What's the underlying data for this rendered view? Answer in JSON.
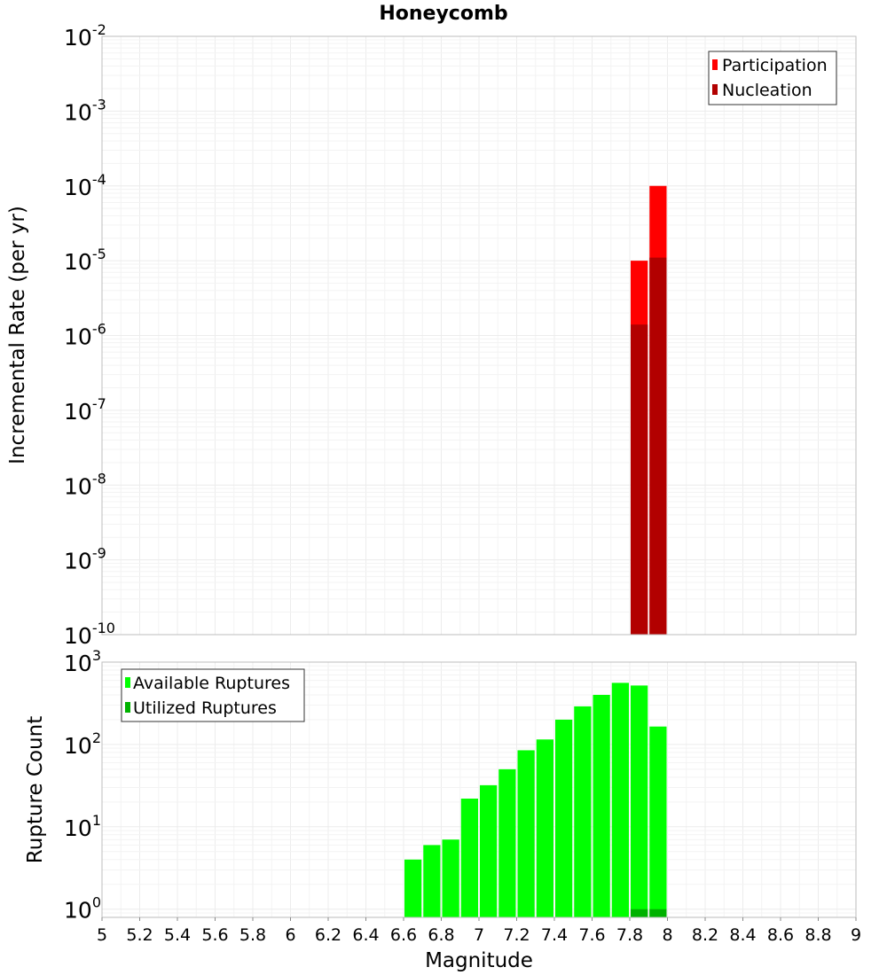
{
  "title": "Honeycomb",
  "chart_data": [
    {
      "type": "bar",
      "scale": "log",
      "ylabel": "Incremental Rate (per yr)",
      "xlabel": "",
      "xlim": [
        5,
        9
      ],
      "ylim_exp": [
        -10,
        -2
      ],
      "ytick_base": "10",
      "yticks": [
        -2,
        -3,
        -4,
        -5,
        -6,
        -7,
        -8,
        -9,
        -10
      ],
      "bin_width": 0.1,
      "grid": true,
      "legend_position": "top-right",
      "legend": [
        {
          "name": "Participation",
          "color": "#ff0000"
        },
        {
          "name": "Nucleation",
          "color": "#b20000"
        }
      ],
      "series": [
        {
          "name": "Participation",
          "color": "#ff0000",
          "points": [
            {
              "x": 7.85,
              "y": 1e-05
            },
            {
              "x": 7.95,
              "y": 0.0001
            }
          ]
        },
        {
          "name": "Nucleation",
          "color": "#b20000",
          "points": [
            {
              "x": 7.85,
              "y": 1.4e-06
            },
            {
              "x": 7.95,
              "y": 1.1e-05
            }
          ]
        }
      ]
    },
    {
      "type": "bar",
      "scale": "log",
      "ylabel": "Rupture Count",
      "xlabel": "Magnitude",
      "xlim": [
        5,
        9
      ],
      "ylim_exp": [
        -0.1,
        3
      ],
      "ytick_base": "10",
      "yticks": [
        3,
        2,
        1,
        0
      ],
      "xticks": [
        "5",
        "5.2",
        "5.4",
        "5.6",
        "5.8",
        "6",
        "6.2",
        "6.4",
        "6.6",
        "6.8",
        "7",
        "7.2",
        "7.4",
        "7.6",
        "7.8",
        "8",
        "8.2",
        "8.4",
        "8.6",
        "8.8",
        "9"
      ],
      "bin_width": 0.1,
      "grid": true,
      "legend_position": "top-left",
      "legend": [
        {
          "name": "Available Ruptures",
          "color": "#00ff00"
        },
        {
          "name": "Utilized Ruptures",
          "color": "#00b200"
        }
      ],
      "series": [
        {
          "name": "Available Ruptures",
          "color": "#00ff00",
          "points": [
            {
              "x": 6.65,
              "y": 4
            },
            {
              "x": 6.75,
              "y": 6
            },
            {
              "x": 6.85,
              "y": 7
            },
            {
              "x": 6.95,
              "y": 22
            },
            {
              "x": 7.05,
              "y": 32
            },
            {
              "x": 7.15,
              "y": 50
            },
            {
              "x": 7.25,
              "y": 85
            },
            {
              "x": 7.35,
              "y": 115
            },
            {
              "x": 7.45,
              "y": 200
            },
            {
              "x": 7.55,
              "y": 290
            },
            {
              "x": 7.65,
              "y": 400
            },
            {
              "x": 7.75,
              "y": 560
            },
            {
              "x": 7.85,
              "y": 520
            },
            {
              "x": 7.95,
              "y": 165
            }
          ]
        },
        {
          "name": "Utilized Ruptures",
          "color": "#00b200",
          "points": [
            {
              "x": 7.85,
              "y": 1
            },
            {
              "x": 7.95,
              "y": 1
            }
          ]
        }
      ]
    }
  ]
}
